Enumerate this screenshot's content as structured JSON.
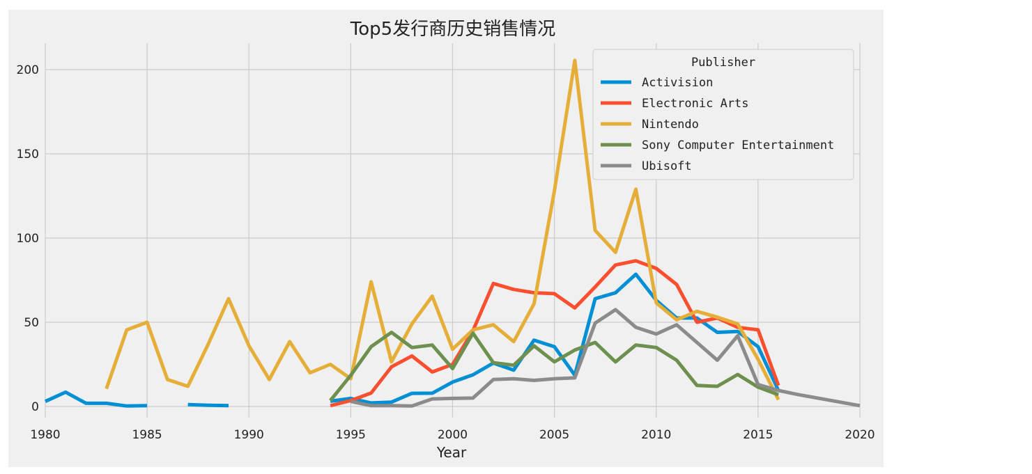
{
  "chart_data": {
    "type": "line",
    "title": "Top5发行商历史销售情况",
    "xlabel": "Year",
    "ylabel": "",
    "xlim": [
      1980,
      2020
    ],
    "ylim": [
      -8,
      215
    ],
    "xticks": [
      1980,
      1985,
      1990,
      1995,
      2000,
      2005,
      2010,
      2015,
      2020
    ],
    "yticks": [
      0,
      50,
      100,
      150,
      200
    ],
    "grid": true,
    "legend": {
      "title": "Publisher",
      "placement": "top-right"
    },
    "series": [
      {
        "name": "Activision",
        "color": "#008fd5",
        "points": [
          [
            1980,
            3.0
          ],
          [
            1981,
            8.5
          ],
          [
            1982,
            1.9
          ],
          [
            1983,
            1.9
          ],
          [
            1984,
            0.3
          ],
          [
            1985,
            0.5
          ],
          [
            1986,
            null
          ],
          [
            1987,
            1.1
          ],
          [
            1988,
            0.7
          ],
          [
            1989,
            0.5
          ],
          [
            1990,
            null
          ],
          [
            1991,
            null
          ],
          [
            1992,
            null
          ],
          [
            1993,
            null
          ],
          [
            1994,
            3.1
          ],
          [
            1995,
            4.8
          ],
          [
            1996,
            2.1
          ],
          [
            1997,
            2.6
          ],
          [
            1998,
            7.8
          ],
          [
            1999,
            7.9
          ],
          [
            2000,
            14.5
          ],
          [
            2001,
            18.8
          ],
          [
            2002,
            25.8
          ],
          [
            2003,
            21.6
          ],
          [
            2004,
            39.4
          ],
          [
            2005,
            35.5
          ],
          [
            2006,
            18.6
          ],
          [
            2007,
            64.0
          ],
          [
            2008,
            67.5
          ],
          [
            2009,
            78.5
          ],
          [
            2010,
            63.0
          ],
          [
            2011,
            52.5
          ],
          [
            2012,
            52.5
          ],
          [
            2013,
            44.0
          ],
          [
            2014,
            44.5
          ],
          [
            2015,
            35.5
          ],
          [
            2016,
            9.5
          ]
        ]
      },
      {
        "name": "Electronic Arts",
        "color": "#fc4f30",
        "points": [
          [
            1994,
            0.5
          ],
          [
            1995,
            3.5
          ],
          [
            1996,
            8.0
          ],
          [
            1997,
            23.5
          ],
          [
            1998,
            30.0
          ],
          [
            1999,
            20.5
          ],
          [
            2000,
            25.0
          ],
          [
            2001,
            45.0
          ],
          [
            2002,
            73.0
          ],
          [
            2003,
            69.5
          ],
          [
            2004,
            67.5
          ],
          [
            2005,
            67.0
          ],
          [
            2006,
            58.5
          ],
          [
            2007,
            71.0
          ],
          [
            2008,
            84.0
          ],
          [
            2009,
            86.5
          ],
          [
            2010,
            82.0
          ],
          [
            2011,
            72.5
          ],
          [
            2012,
            50.0
          ],
          [
            2013,
            52.5
          ],
          [
            2014,
            47.0
          ],
          [
            2015,
            45.5
          ],
          [
            2016,
            12.5
          ]
        ]
      },
      {
        "name": "Nintendo",
        "color": "#e5ae38",
        "points": [
          [
            1983,
            10.5
          ],
          [
            1984,
            45.5
          ],
          [
            1985,
            50.0
          ],
          [
            1986,
            16.0
          ],
          [
            1987,
            12.0
          ],
          [
            1988,
            37.0
          ],
          [
            1989,
            64.0
          ],
          [
            1990,
            36.0
          ],
          [
            1991,
            16.0
          ],
          [
            1992,
            38.5
          ],
          [
            1993,
            20.0
          ],
          [
            1994,
            25.0
          ],
          [
            1995,
            16.5
          ],
          [
            1996,
            74.0
          ],
          [
            1997,
            26.5
          ],
          [
            1998,
            49.0
          ],
          [
            1999,
            65.5
          ],
          [
            2000,
            34.0
          ],
          [
            2001,
            45.5
          ],
          [
            2002,
            48.5
          ],
          [
            2003,
            38.5
          ],
          [
            2004,
            61.0
          ],
          [
            2005,
            128.0
          ],
          [
            2006,
            205.5
          ],
          [
            2007,
            104.5
          ],
          [
            2008,
            91.5
          ],
          [
            2009,
            129.0
          ],
          [
            2010,
            61.5
          ],
          [
            2011,
            51.5
          ],
          [
            2012,
            56.5
          ],
          [
            2013,
            53.0
          ],
          [
            2014,
            49.0
          ],
          [
            2015,
            28.0
          ],
          [
            2016,
            4.0
          ]
        ]
      },
      {
        "name": "Sony Computer Entertainment",
        "color": "#6d904f",
        "points": [
          [
            1994,
            3.5
          ],
          [
            1995,
            18.5
          ],
          [
            1996,
            35.5
          ],
          [
            1997,
            44.0
          ],
          [
            1998,
            35.0
          ],
          [
            1999,
            36.5
          ],
          [
            2000,
            22.5
          ],
          [
            2001,
            43.5
          ],
          [
            2002,
            26.0
          ],
          [
            2003,
            24.5
          ],
          [
            2004,
            36.0
          ],
          [
            2005,
            26.5
          ],
          [
            2006,
            33.5
          ],
          [
            2007,
            38.0
          ],
          [
            2008,
            26.5
          ],
          [
            2009,
            36.5
          ],
          [
            2010,
            35.0
          ],
          [
            2011,
            27.5
          ],
          [
            2012,
            12.5
          ],
          [
            2013,
            12.0
          ],
          [
            2014,
            19.0
          ],
          [
            2015,
            11.5
          ],
          [
            2016,
            7.0
          ]
        ]
      },
      {
        "name": "Ubisoft",
        "color": "#8b8b8b",
        "points": [
          [
            1995,
            3.0
          ],
          [
            1996,
            0.5
          ],
          [
            1997,
            0.5
          ],
          [
            1998,
            0.3
          ],
          [
            1999,
            4.5
          ],
          [
            2000,
            4.8
          ],
          [
            2001,
            5.0
          ],
          [
            2002,
            16.0
          ],
          [
            2003,
            16.5
          ],
          [
            2004,
            15.5
          ],
          [
            2005,
            16.5
          ],
          [
            2006,
            17.0
          ],
          [
            2007,
            49.5
          ],
          [
            2008,
            57.5
          ],
          [
            2009,
            47.0
          ],
          [
            2010,
            43.0
          ],
          [
            2011,
            48.5
          ],
          [
            2012,
            38.0
          ],
          [
            2013,
            27.5
          ],
          [
            2014,
            42.0
          ],
          [
            2015,
            13.0
          ],
          [
            2016,
            9.5
          ],
          [
            2017,
            7.0
          ],
          [
            2020,
            0.5
          ]
        ]
      }
    ]
  }
}
